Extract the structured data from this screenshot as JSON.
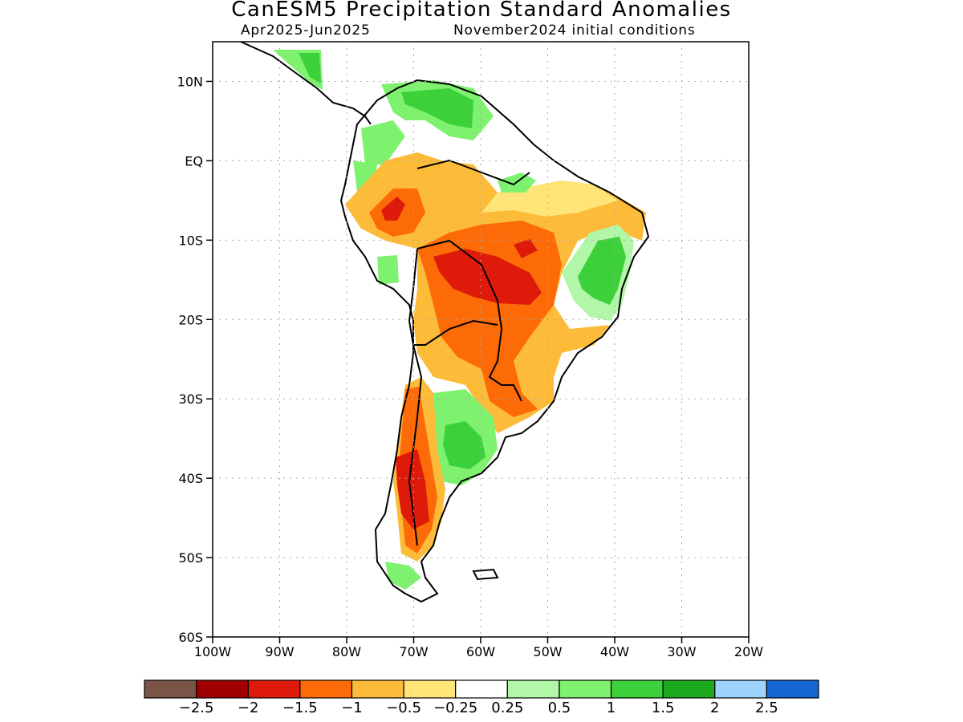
{
  "title": "CanESM5 Precipitation Standard Anomalies",
  "subtitle_left": "Apr2025-Jun2025",
  "subtitle_right": "November2024 initial conditions",
  "map": {
    "lon_range": [
      -100,
      -20
    ],
    "lat_range": [
      -60,
      15
    ],
    "lon_ticks": [
      {
        "value": -100,
        "label": "100W"
      },
      {
        "value": -90,
        "label": "90W"
      },
      {
        "value": -80,
        "label": "80W"
      },
      {
        "value": -70,
        "label": "70W"
      },
      {
        "value": -60,
        "label": "60W"
      },
      {
        "value": -50,
        "label": "50W"
      },
      {
        "value": -40,
        "label": "40W"
      },
      {
        "value": -30,
        "label": "30W"
      },
      {
        "value": -20,
        "label": "20W"
      }
    ],
    "lat_ticks": [
      {
        "value": 10,
        "label": "10N"
      },
      {
        "value": 0,
        "label": "EQ"
      },
      {
        "value": -10,
        "label": "10S"
      },
      {
        "value": -20,
        "label": "20S"
      },
      {
        "value": -30,
        "label": "30S"
      },
      {
        "value": -40,
        "label": "40S"
      },
      {
        "value": -50,
        "label": "50S"
      },
      {
        "value": -60,
        "label": "60S"
      }
    ],
    "grid": "dotted"
  },
  "colorbar": {
    "colors": [
      "#7a5446",
      "#a00000",
      "#de1a0a",
      "#fd6a08",
      "#fdbb3a",
      "#ffe478",
      "#ffffff",
      "#b2f7a7",
      "#7ef16e",
      "#3cd13a",
      "#1eaa1e",
      "#9cd4fb",
      "#1464d2"
    ],
    "labels": [
      "-2.5",
      "-2",
      "-1.5",
      "-1",
      "-0.5",
      "-0.25",
      "0.25",
      "0.5",
      "1",
      "1.5",
      "2",
      "2.5"
    ]
  }
}
